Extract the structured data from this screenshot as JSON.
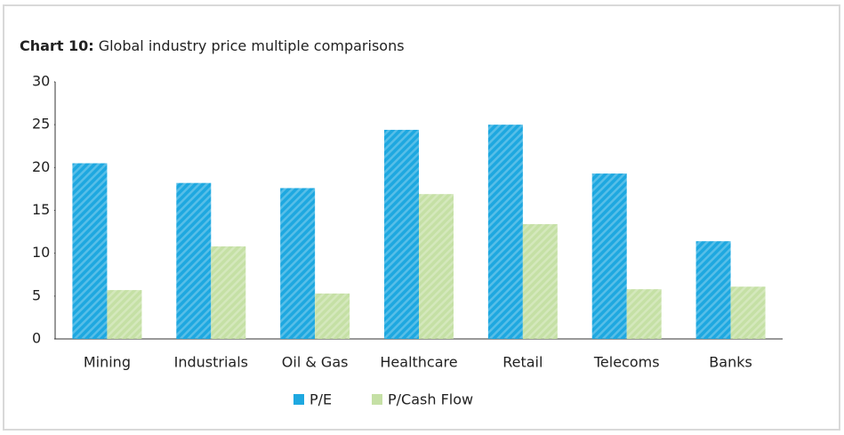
{
  "chart_data": {
    "type": "bar",
    "title_label": "Chart 10:",
    "title": "Global industry price multiple comparisons",
    "categories": [
      "Mining",
      "Industrials",
      "Oil & Gas",
      "Healthcare",
      "Retail",
      "Telecoms",
      "Banks"
    ],
    "series": [
      {
        "name": "P/E",
        "color": "#1ea8e0",
        "values": [
          20.5,
          18.2,
          17.6,
          24.4,
          25.0,
          19.3,
          11.4
        ]
      },
      {
        "name": "P/Cash Flow",
        "color": "#c5e0a5",
        "values": [
          5.7,
          10.8,
          5.3,
          16.9,
          13.4,
          5.8,
          6.1
        ]
      }
    ],
    "ylim": [
      0,
      30
    ],
    "yticks": [
      0,
      5,
      10,
      15,
      20,
      25,
      30
    ],
    "grid": false,
    "legend": "bottom"
  }
}
